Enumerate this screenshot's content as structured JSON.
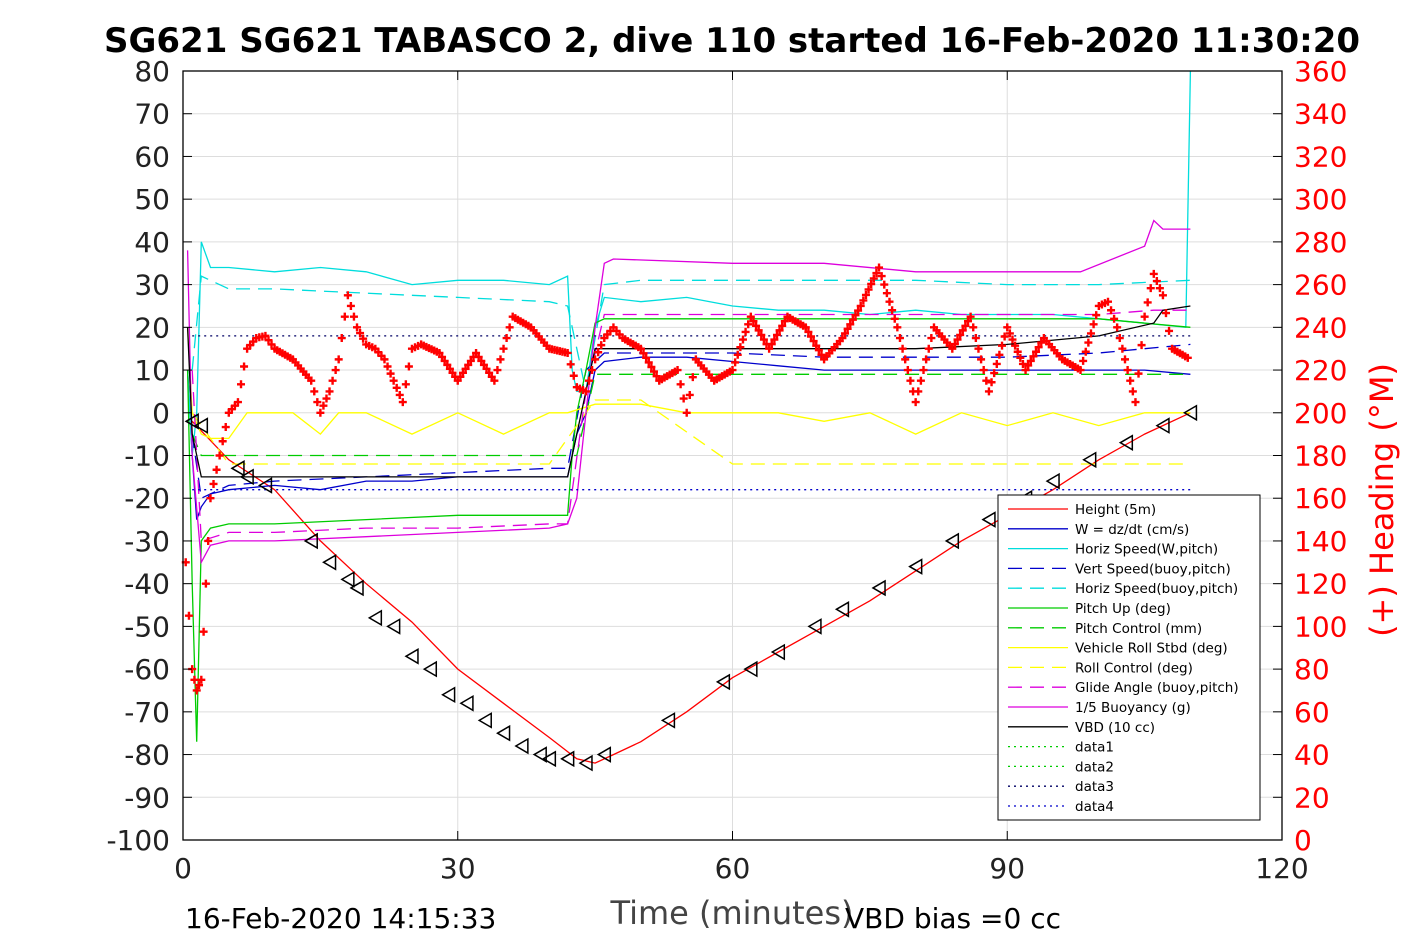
{
  "chart_data": {
    "type": "line",
    "title": "SG621 SG621 TABASCO 2, dive 110 started 16-Feb-2020 11:30:20",
    "xlabel": "Time (minutes)",
    "ylabel_left": "",
    "ylabel_right": "(+) Heading (°M)",
    "footer_left": "16-Feb-2020 14:15:33",
    "footer_right": "VBD bias =0 cc",
    "xlim": [
      0,
      120
    ],
    "ylim_left": [
      -100,
      80
    ],
    "ylim_right": [
      0,
      360
    ],
    "x_ticks": [
      0,
      30,
      60,
      90,
      120
    ],
    "y_ticks_left": [
      80,
      70,
      60,
      50,
      40,
      30,
      20,
      10,
      0,
      -10,
      -20,
      -30,
      -40,
      -50,
      -60,
      -70,
      -80,
      -90,
      -100
    ],
    "y_ticks_right": [
      360,
      340,
      320,
      300,
      280,
      260,
      240,
      220,
      200,
      180,
      160,
      140,
      120,
      100,
      80,
      60,
      40,
      20,
      0
    ],
    "grid": true,
    "legend_position": "lower-right",
    "colors": {
      "right_axis": "#ff0000",
      "heading_marker": "#ff0000"
    },
    "series": [
      {
        "name": "Height (5m)",
        "color": "#ff0000",
        "style": "solid",
        "x": [
          1,
          5,
          10,
          15,
          20,
          25,
          30,
          35,
          40,
          43,
          45,
          47,
          50,
          55,
          60,
          65,
          70,
          75,
          80,
          85,
          90,
          95,
          100,
          105,
          110
        ],
        "y": [
          -2,
          -11,
          -18,
          -30,
          -40,
          -49,
          -60,
          -68,
          -76,
          -81,
          -82,
          -80,
          -77,
          -70,
          -62,
          -56,
          -50,
          -44,
          -37,
          -30,
          -24,
          -18,
          -11,
          -5,
          0
        ]
      },
      {
        "name": "W = dz/dt (cm/s)",
        "color": "#0000cc",
        "style": "solid",
        "x": [
          0.5,
          1,
          1.5,
          2,
          3,
          5,
          10,
          15,
          20,
          25,
          30,
          35,
          40,
          42,
          42.5,
          43,
          44,
          45,
          46,
          50,
          55,
          60,
          65,
          70,
          75,
          80,
          85,
          90,
          95,
          100,
          105,
          110
        ],
        "y": [
          10,
          -10,
          -25,
          -22,
          -19,
          -18,
          -17,
          -18,
          -16,
          -16,
          -15,
          -15,
          -15,
          -15,
          -10,
          -5,
          0,
          10,
          12,
          13,
          13,
          12,
          11,
          10,
          10,
          10,
          10,
          10,
          10,
          10,
          10,
          9
        ]
      },
      {
        "name": "Horiz Speed(W,pitch)",
        "color": "#00dddd",
        "style": "solid",
        "x": [
          0.5,
          1,
          1.5,
          2,
          3,
          5,
          10,
          15,
          20,
          25,
          30,
          35,
          40,
          42,
          42.5,
          43,
          44,
          45,
          46,
          50,
          55,
          60,
          65,
          70,
          75,
          80,
          85,
          90,
          95,
          100,
          105,
          109.5,
          110
        ],
        "y": [
          10,
          -10,
          0,
          40,
          34,
          34,
          33,
          34,
          33,
          30,
          31,
          31,
          30,
          32,
          10,
          5,
          5,
          20,
          27,
          26,
          27,
          25,
          24,
          24,
          23,
          24,
          23,
          23,
          23,
          22,
          21,
          20,
          80
        ]
      },
      {
        "name": "Vert Speed(buoy,pitch)",
        "color": "#0000cc",
        "style": "dashed",
        "x": [
          1,
          2,
          5,
          10,
          20,
          30,
          40,
          42,
          44,
          46,
          50,
          60,
          70,
          80,
          90,
          100,
          110
        ],
        "y": [
          -5,
          -20,
          -17,
          -16,
          -15,
          -14,
          -13,
          -13,
          10,
          14,
          14,
          14,
          13,
          13,
          13,
          14,
          16
        ]
      },
      {
        "name": "Horiz Speed(buoy,pitch)",
        "color": "#00dddd",
        "style": "dashed",
        "x": [
          1,
          2,
          5,
          10,
          20,
          30,
          40,
          42,
          44,
          46,
          50,
          60,
          70,
          80,
          90,
          100,
          110
        ],
        "y": [
          10,
          32,
          29,
          29,
          28,
          27,
          26,
          25,
          5,
          30,
          31,
          31,
          31,
          31,
          30,
          30,
          31
        ]
      },
      {
        "name": "Pitch Up (deg)",
        "color": "#00cc00",
        "style": "solid",
        "x": [
          0.5,
          1,
          1.5,
          2,
          3,
          5,
          10,
          20,
          30,
          40,
          42,
          42.5,
          43,
          44,
          45,
          46,
          50,
          60,
          70,
          80,
          90,
          100,
          105,
          110
        ],
        "y": [
          10,
          -40,
          -77,
          -30,
          -27,
          -26,
          -26,
          -25,
          -24,
          -24,
          -24,
          -10,
          0,
          10,
          21,
          22,
          22,
          22,
          22,
          22,
          22,
          22,
          21,
          20
        ]
      },
      {
        "name": "Pitch Control (mm)",
        "color": "#00cc00",
        "style": "dashed",
        "x": [
          1,
          2,
          5,
          10,
          20,
          30,
          40,
          42,
          43,
          45,
          46,
          60,
          70,
          80,
          90,
          100,
          106,
          110
        ],
        "y": [
          -5,
          -10,
          -10,
          -10,
          -10,
          -10,
          -10,
          -10,
          -10,
          9,
          9,
          9,
          9,
          9,
          9,
          9,
          9,
          9
        ]
      },
      {
        "name": "Vehicle Roll Stbd (deg)",
        "color": "#ffff00",
        "style": "solid",
        "x": [
          0.5,
          1,
          2,
          3,
          5,
          7,
          10,
          12,
          15,
          17,
          20,
          25,
          30,
          35,
          40,
          42,
          45,
          50,
          55,
          60,
          65,
          70,
          75,
          80,
          85,
          90,
          95,
          100,
          105,
          110
        ],
        "y": [
          20,
          0,
          -5,
          -6,
          -6,
          0,
          0,
          0,
          -5,
          0,
          0,
          -5,
          0,
          -5,
          0,
          0,
          2,
          2,
          0,
          0,
          0,
          -2,
          0,
          -5,
          0,
          -3,
          0,
          -3,
          0,
          0
        ]
      },
      {
        "name": "Roll Control (deg)",
        "color": "#ffff00",
        "style": "dashed",
        "x": [
          1,
          5,
          10,
          20,
          30,
          40,
          45,
          50,
          60,
          70,
          80,
          90,
          100,
          110
        ],
        "y": [
          0,
          -12,
          -12,
          -12,
          -12,
          -12,
          3,
          3,
          -12,
          -12,
          -12,
          -12,
          -12,
          -12
        ]
      },
      {
        "name": "Glide Angle (buoy,pitch)",
        "color": "#dd00dd",
        "style": "dashed",
        "x": [
          1,
          2,
          5,
          10,
          20,
          30,
          40,
          42,
          44,
          46,
          50,
          60,
          70,
          80,
          90,
          100,
          106,
          110
        ],
        "y": [
          10,
          -30,
          -28,
          -28,
          -27,
          -27,
          -26,
          -26,
          5,
          23,
          23,
          23,
          23,
          23,
          23,
          23,
          24,
          24
        ]
      },
      {
        "name": "1/5 Buoyancy (g)",
        "color": "#dd00dd",
        "style": "solid",
        "x": [
          0.5,
          1,
          2,
          3,
          5,
          10,
          20,
          30,
          40,
          42,
          43,
          44,
          45,
          46,
          47,
          60,
          70,
          80,
          90,
          98,
          105,
          106,
          107,
          110
        ],
        "y": [
          38,
          -10,
          -35,
          -31,
          -30,
          -30,
          -29,
          -28,
          -27,
          -26,
          -20,
          0,
          20,
          35,
          36,
          35,
          35,
          33,
          33,
          33,
          39,
          45,
          43,
          43
        ]
      },
      {
        "name": "VBD (10 cc)",
        "color": "#000000",
        "style": "solid",
        "x": [
          0.5,
          1,
          2,
          5,
          10,
          20,
          30,
          40,
          42,
          45,
          47,
          60,
          80,
          90,
          100,
          106,
          107,
          110
        ],
        "y": [
          20,
          -5,
          -15,
          -15,
          -15,
          -15,
          -15,
          -15,
          -15,
          15,
          15,
          15,
          15,
          16,
          18,
          21,
          24,
          25
        ]
      },
      {
        "name": "data1",
        "color": "#00cc00",
        "style": "dotted",
        "x": [],
        "y": []
      },
      {
        "name": "data2",
        "color": "#00cc00",
        "style": "dotted",
        "x": [],
        "y": []
      },
      {
        "name": "data3",
        "color": "#000066",
        "style": "dotted",
        "x": [
          1,
          110
        ],
        "y": [
          18,
          18
        ]
      },
      {
        "name": "data4",
        "color": "#0000cc",
        "style": "dotted",
        "x": [
          1,
          110
        ],
        "y": [
          -18,
          -18
        ]
      }
    ],
    "heading": {
      "marker": "+",
      "color": "#ff0000",
      "axis": "right",
      "x": [
        0.3,
        1,
        1.5,
        2,
        2.5,
        3,
        4,
        5,
        6,
        7,
        8,
        9,
        10,
        12,
        14,
        15,
        16,
        17,
        18,
        19,
        20,
        21,
        22,
        23,
        24,
        25,
        26,
        28,
        30,
        32,
        34,
        35,
        36,
        38,
        40,
        42,
        43,
        44,
        45,
        46,
        47,
        48,
        50,
        52,
        54,
        55,
        56,
        58,
        60,
        62,
        64,
        66,
        68,
        70,
        72,
        74,
        76,
        78,
        80,
        82,
        84,
        86,
        88,
        90,
        92,
        94,
        96,
        98,
        100,
        101,
        102,
        104,
        105,
        106,
        107,
        108,
        110
      ],
      "y": [
        130,
        80,
        70,
        75,
        120,
        160,
        180,
        200,
        205,
        230,
        235,
        236,
        230,
        225,
        215,
        200,
        210,
        225,
        255,
        240,
        232,
        230,
        225,
        215,
        205,
        230,
        232,
        228,
        215,
        228,
        215,
        230,
        245,
        240,
        230,
        228,
        212,
        210,
        225,
        235,
        240,
        235,
        230,
        215,
        220,
        200,
        225,
        215,
        220,
        245,
        230,
        245,
        240,
        225,
        235,
        250,
        268,
        240,
        205,
        240,
        230,
        245,
        210,
        240,
        220,
        235,
        225,
        220,
        250,
        252,
        240,
        205,
        245,
        265,
        255,
        230,
        225
      ]
    },
    "triangles": {
      "marker": "triangle",
      "color": "#000000",
      "axis": "left",
      "x": [
        1,
        2,
        6,
        7,
        9,
        14,
        16,
        18,
        19,
        21,
        23,
        25,
        27,
        29,
        31,
        33,
        35,
        37,
        39,
        40,
        42,
        44,
        46,
        53,
        59,
        62,
        65,
        69,
        72,
        76,
        80,
        84,
        88,
        92,
        95,
        99,
        103,
        107,
        110
      ],
      "y": [
        -2,
        -3,
        -13,
        -15,
        -17,
        -30,
        -35,
        -39,
        -41,
        -48,
        -50,
        -57,
        -60,
        -66,
        -68,
        -72,
        -75,
        -78,
        -80,
        -81,
        -81,
        -82,
        -80,
        -72,
        -63,
        -60,
        -56,
        -50,
        -46,
        -41,
        -36,
        -30,
        -25,
        -20,
        -16,
        -11,
        -7,
        -3,
        0
      ]
    }
  }
}
